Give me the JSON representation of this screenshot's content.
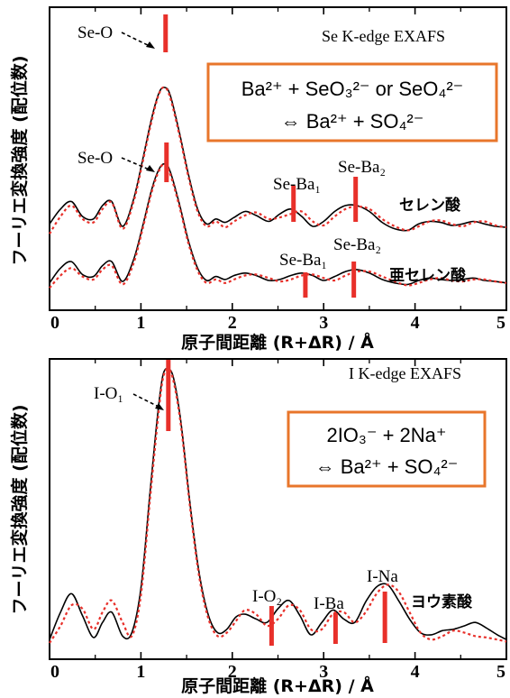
{
  "chart_data": [
    {
      "type": "line",
      "edge_label": "Se K-edge EXAFS",
      "xlabel": "原子間距離 (R+ΔR) / Å",
      "ylabel": "フーリエ変換強度 (配位数)",
      "xlim": [
        0,
        5
      ],
      "xticks": [
        "0",
        "1",
        "2",
        "3",
        "4",
        "5"
      ],
      "reaction": {
        "line1": "Ba²⁺ + SeO₃²⁻ or SeO₄²⁻",
        "line2": "⇔ Ba²⁺ + SO₄²⁻"
      },
      "samples": [
        {
          "name": "セレン酸",
          "series": [
            {
              "style": "solid-black",
              "x": [
                0,
                0.12,
                0.24,
                0.36,
                0.48,
                0.58,
                0.68,
                0.8,
                0.92,
                1.02,
                1.12,
                1.2,
                1.26,
                1.32,
                1.42,
                1.52,
                1.62,
                1.72,
                1.82,
                1.92,
                2.02,
                2.14,
                2.26,
                2.4,
                2.52,
                2.64,
                2.76,
                2.88,
                3.0,
                3.12,
                3.24,
                3.36,
                3.5,
                3.64,
                3.78,
                3.92,
                4.04,
                4.16,
                4.28,
                4.4,
                4.52,
                4.64,
                4.76,
                4.88,
                5.0
              ],
              "y": [
                0.25,
                0.55,
                0.7,
                0.4,
                0.35,
                0.62,
                0.7,
                0.2,
                0.75,
                1.55,
                2.4,
                2.9,
                3.0,
                2.85,
                2.1,
                1.25,
                0.55,
                0.25,
                0.35,
                0.28,
                0.38,
                0.5,
                0.42,
                0.3,
                0.45,
                0.55,
                0.4,
                0.2,
                0.3,
                0.5,
                0.62,
                0.62,
                0.5,
                0.28,
                0.15,
                0.12,
                0.25,
                0.3,
                0.28,
                0.22,
                0.25,
                0.3,
                0.25,
                0.2,
                0.18
              ]
            },
            {
              "style": "dotted-red",
              "x": [
                0,
                0.12,
                0.24,
                0.36,
                0.48,
                0.58,
                0.68,
                0.8,
                0.92,
                1.02,
                1.12,
                1.2,
                1.26,
                1.32,
                1.42,
                1.52,
                1.62,
                1.72,
                1.82,
                1.92,
                2.02,
                2.14,
                2.26,
                2.4,
                2.52,
                2.64,
                2.76,
                2.88,
                3.0,
                3.12,
                3.24,
                3.36,
                3.5,
                3.64,
                3.78,
                3.92,
                4.04,
                4.16,
                4.28,
                4.4,
                4.52,
                4.64,
                4.76,
                4.88,
                5.0
              ],
              "y": [
                0.05,
                0.4,
                0.62,
                0.35,
                0.28,
                0.55,
                0.68,
                0.15,
                0.7,
                1.5,
                2.35,
                2.88,
                3.0,
                2.8,
                2.05,
                1.2,
                0.5,
                0.2,
                0.3,
                0.18,
                0.3,
                0.42,
                0.48,
                0.35,
                0.38,
                0.45,
                0.5,
                0.3,
                0.22,
                0.4,
                0.55,
                0.6,
                0.55,
                0.35,
                0.2,
                0.12,
                0.2,
                0.3,
                0.32,
                0.25,
                0.2,
                0.28,
                0.3,
                0.22,
                0.18
              ]
            }
          ],
          "markers": [
            {
              "label": "Se-O",
              "x": 1.27
            },
            {
              "label": "Se-Ba₁",
              "x": 2.67
            },
            {
              "label": "Se-Ba₂",
              "x": 3.35
            }
          ]
        },
        {
          "name": "亜セレン酸",
          "series": [
            {
              "style": "solid-black",
              "x": [
                0,
                0.12,
                0.24,
                0.36,
                0.48,
                0.58,
                0.68,
                0.8,
                0.92,
                1.02,
                1.12,
                1.2,
                1.26,
                1.32,
                1.42,
                1.52,
                1.62,
                1.72,
                1.82,
                1.92,
                2.02,
                2.14,
                2.26,
                2.4,
                2.52,
                2.64,
                2.76,
                2.88,
                3.0,
                3.12,
                3.24,
                3.36,
                3.5,
                3.64,
                3.78,
                3.92,
                4.04,
                4.16,
                4.28,
                4.4,
                4.52,
                4.64,
                4.76,
                4.88,
                5.0
              ],
              "y": [
                0.15,
                0.45,
                0.58,
                0.32,
                0.28,
                0.5,
                0.58,
                0.18,
                0.62,
                1.3,
                2.05,
                2.45,
                2.55,
                2.4,
                1.75,
                1.0,
                0.45,
                0.2,
                0.28,
                0.22,
                0.3,
                0.35,
                0.3,
                0.2,
                0.22,
                0.3,
                0.35,
                0.3,
                0.2,
                0.28,
                0.38,
                0.42,
                0.35,
                0.22,
                0.15,
                0.12,
                0.2,
                0.25,
                0.22,
                0.2,
                0.22,
                0.25,
                0.2,
                0.18,
                0.15
              ]
            },
            {
              "style": "dotted-red",
              "x": [
                0,
                0.12,
                0.24,
                0.36,
                0.48,
                0.58,
                0.68,
                0.8,
                0.92,
                1.02,
                1.12,
                1.2,
                1.26,
                1.32,
                1.42,
                1.52,
                1.62,
                1.72,
                1.82,
                1.92,
                2.02,
                2.14,
                2.26,
                2.4,
                2.52,
                2.64,
                2.76,
                2.88,
                3.0,
                3.12,
                3.24,
                3.36,
                3.5,
                3.64,
                3.78,
                3.92,
                4.04,
                4.16,
                4.28,
                4.4,
                4.52,
                4.64,
                4.76,
                4.88,
                5.0
              ],
              "y": [
                0.05,
                0.3,
                0.45,
                0.28,
                0.22,
                0.42,
                0.5,
                0.12,
                0.55,
                1.25,
                2.0,
                2.42,
                2.55,
                2.35,
                1.7,
                0.95,
                0.4,
                0.15,
                0.22,
                0.15,
                0.22,
                0.3,
                0.32,
                0.25,
                0.18,
                0.22,
                0.3,
                0.32,
                0.25,
                0.2,
                0.3,
                0.38,
                0.38,
                0.28,
                0.18,
                0.1,
                0.15,
                0.22,
                0.25,
                0.2,
                0.18,
                0.22,
                0.22,
                0.18,
                0.15
              ]
            }
          ],
          "markers": [
            {
              "label": "Se-O",
              "x": 1.28
            },
            {
              "label": "Se-Ba₁",
              "x": 2.8
            },
            {
              "label": "Se-Ba₂",
              "x": 3.33
            }
          ]
        }
      ]
    },
    {
      "type": "line",
      "edge_label": "I K-edge EXAFS",
      "xlabel": "原子間距離 (R+ΔR) / Å",
      "ylabel": "フーリエ変換強度 (配位数)",
      "xlim": [
        0,
        5
      ],
      "xticks": [
        "0",
        "1",
        "2",
        "3",
        "4",
        "5"
      ],
      "reaction": {
        "line1": "2IO₃⁻ + 2Na⁺",
        "line2": "⇔ Ba²⁺ + SO₄²⁻"
      },
      "samples": [
        {
          "name": "ヨウ素酸",
          "series": [
            {
              "style": "solid-black",
              "x": [
                0,
                0.12,
                0.24,
                0.36,
                0.48,
                0.58,
                0.68,
                0.8,
                0.9,
                1.0,
                1.1,
                1.18,
                1.24,
                1.3,
                1.36,
                1.44,
                1.54,
                1.64,
                1.74,
                1.84,
                1.94,
                2.04,
                2.14,
                2.26,
                2.38,
                2.5,
                2.62,
                2.74,
                2.86,
                2.98,
                3.1,
                3.22,
                3.34,
                3.46,
                3.58,
                3.7,
                3.82,
                3.94,
                4.06,
                4.18,
                4.3,
                4.42,
                4.54,
                4.66,
                4.78,
                4.9,
                5.0
              ],
              "y": [
                0.05,
                0.45,
                0.72,
                0.4,
                0.08,
                0.3,
                0.45,
                0.1,
                0.15,
                0.8,
                2.2,
                3.3,
                3.9,
                4.0,
                3.85,
                3.2,
                2.0,
                1.0,
                0.4,
                0.15,
                0.2,
                0.38,
                0.42,
                0.35,
                0.3,
                0.5,
                0.62,
                0.4,
                0.12,
                0.3,
                0.48,
                0.35,
                0.3,
                0.6,
                0.82,
                0.85,
                0.62,
                0.35,
                0.15,
                0.12,
                0.18,
                0.2,
                0.25,
                0.3,
                0.22,
                0.12,
                0.05
              ]
            },
            {
              "style": "dotted-red",
              "x": [
                0,
                0.12,
                0.24,
                0.36,
                0.48,
                0.58,
                0.68,
                0.8,
                0.9,
                1.0,
                1.1,
                1.18,
                1.24,
                1.3,
                1.36,
                1.44,
                1.54,
                1.64,
                1.74,
                1.84,
                1.94,
                2.04,
                2.14,
                2.26,
                2.38,
                2.5,
                2.62,
                2.74,
                2.86,
                2.98,
                3.1,
                3.22,
                3.34,
                3.46,
                3.58,
                3.7,
                3.82,
                3.94,
                4.06,
                4.18,
                4.3,
                4.42,
                4.54,
                4.66,
                4.78,
                4.9,
                5.0
              ],
              "y": [
                0.0,
                0.25,
                0.55,
                0.5,
                0.2,
                0.45,
                0.62,
                0.3,
                0.1,
                0.7,
                2.1,
                3.2,
                3.85,
                4.0,
                3.8,
                3.15,
                1.95,
                0.95,
                0.35,
                0.1,
                0.15,
                0.32,
                0.48,
                0.42,
                0.25,
                0.35,
                0.55,
                0.48,
                0.2,
                0.2,
                0.42,
                0.45,
                0.3,
                0.45,
                0.72,
                0.85,
                0.75,
                0.45,
                0.15,
                0.05,
                0.1,
                0.18,
                0.15,
                0.1,
                0.08,
                0.05,
                0.02
              ]
            }
          ],
          "markers": [
            {
              "label": "I-O₁",
              "x": 1.3
            },
            {
              "label": "I-O₂",
              "x": 2.43
            },
            {
              "label": "I-Ba",
              "x": 3.13
            },
            {
              "label": "I-Na",
              "x": 3.67
            }
          ]
        }
      ]
    }
  ]
}
